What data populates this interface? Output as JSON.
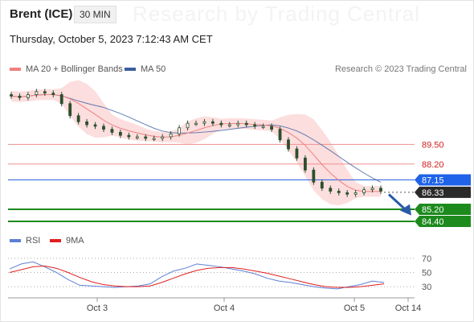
{
  "header": {
    "title": "Brent (ICE)",
    "timeframe": "30 MIN",
    "datetime": "Thursday, October 5, 2023 7:12:43 AM CET",
    "watermark": "Research by Trading Central"
  },
  "legend": {
    "ma20": "MA 20 + Bollinger Bands",
    "ma50": "MA 50",
    "copyright": "Research © 2023 Trading Central",
    "rsi": "RSI",
    "rsi_ma": "9MA"
  },
  "colors": {
    "candle": "#2c4f2c",
    "ma20": "#f08080",
    "bollinger_fill": "#fcd8d8",
    "ma50": "#3a5fa0",
    "resistance": "#f09090",
    "pivot": "#3a6fe0",
    "support": "#1d8a1d",
    "last": "#2a2a2a",
    "rsi": "#5b7fd6",
    "rsi_ma": "#e01f1f",
    "arrow": "#2a5aa8"
  },
  "chart_data": [
    {
      "type": "candlestick",
      "instrument": "Brent (ICE)",
      "timeframe": "30 MIN",
      "x_ticks": [
        "Oct 3",
        "Oct 4",
        "Oct 5",
        "Oct 14"
      ],
      "ylim": [
        83.6,
        94.0
      ],
      "close_series": [
        92.7,
        92.6,
        92.8,
        93.0,
        92.9,
        92.8,
        92.2,
        91.4,
        91.0,
        90.8,
        90.7,
        90.5,
        90.3,
        90.1,
        90.0,
        90.0,
        89.9,
        89.9,
        90.0,
        90.2,
        90.6,
        90.9,
        90.9,
        91.0,
        90.9,
        90.8,
        90.8,
        90.9,
        90.8,
        90.7,
        90.7,
        90.5,
        89.8,
        89.2,
        88.6,
        87.8,
        87.0,
        86.6,
        86.4,
        86.3,
        86.2,
        86.3,
        86.5,
        86.6,
        86.4
      ],
      "horizontal_levels": [
        {
          "value": 89.5,
          "label": "89.50",
          "kind": "resistance"
        },
        {
          "value": 88.2,
          "label": "88.20",
          "kind": "resistance"
        },
        {
          "value": 87.15,
          "label": "87.15",
          "kind": "pivot"
        },
        {
          "value": 86.33,
          "label": "86.33",
          "kind": "last"
        },
        {
          "value": 85.2,
          "label": "85.20",
          "kind": "support"
        },
        {
          "value": 84.4,
          "label": "84.40",
          "kind": "support"
        }
      ],
      "overlays": [
        "MA 20 + Bollinger Bands",
        "MA 50"
      ]
    },
    {
      "type": "line",
      "name": "RSI",
      "y_ticks": [
        70,
        50,
        30
      ],
      "ylim": [
        20,
        80
      ],
      "series": [
        {
          "name": "RSI",
          "values": [
            55,
            62,
            65,
            58,
            50,
            40,
            32,
            31,
            30,
            29,
            30,
            31,
            34,
            44,
            52,
            56,
            62,
            60,
            58,
            55,
            52,
            48,
            42,
            38,
            36,
            33,
            30,
            28,
            27,
            30,
            33,
            38,
            36
          ]
        },
        {
          "name": "9MA",
          "values": [
            50,
            54,
            58,
            59,
            56,
            50,
            43,
            37,
            33,
            31,
            30,
            30,
            31,
            36,
            42,
            48,
            53,
            56,
            57,
            57,
            55,
            52,
            49,
            45,
            41,
            37,
            33,
            30,
            29,
            29,
            30,
            32,
            34
          ]
        }
      ]
    }
  ]
}
